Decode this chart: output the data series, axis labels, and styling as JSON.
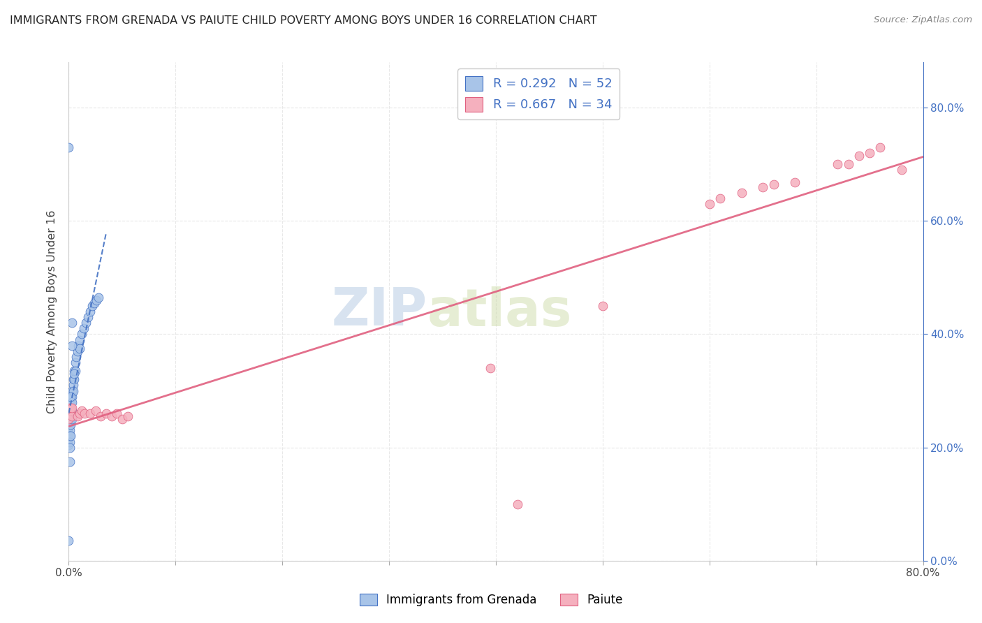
{
  "title": "IMMIGRANTS FROM GRENADA VS PAIUTE CHILD POVERTY AMONG BOYS UNDER 16 CORRELATION CHART",
  "source": "Source: ZipAtlas.com",
  "ylabel": "Child Poverty Among Boys Under 16",
  "legend_bottom": [
    "Immigrants from Grenada",
    "Paiute"
  ],
  "r_grenada": 0.292,
  "n_grenada": 52,
  "r_paiute": 0.667,
  "n_paiute": 34,
  "blue_dot_color": "#a8c4e8",
  "pink_dot_color": "#f5b0be",
  "blue_line_color": "#4472c4",
  "pink_line_color": "#e06080",
  "axis_label_color": "#4472c4",
  "title_color": "#222222",
  "source_color": "#888888",
  "watermark": "ZIPAtlas",
  "watermark_color": "#ccd9ef",
  "background_color": "#ffffff",
  "grid_color": "#e8e8e8",
  "xlim": [
    0.0,
    0.8
  ],
  "ylim": [
    0.0,
    0.88
  ],
  "xticks": [
    0.0,
    0.1,
    0.2,
    0.3,
    0.4,
    0.5,
    0.6,
    0.7,
    0.8
  ],
  "yticks": [
    0.0,
    0.2,
    0.4,
    0.6,
    0.8
  ],
  "grenada_x": [
    0.0,
    0.0,
    0.0,
    0.0,
    0.0,
    0.001,
    0.001,
    0.001,
    0.001,
    0.001,
    0.001,
    0.001,
    0.002,
    0.002,
    0.002,
    0.002,
    0.002,
    0.002,
    0.003,
    0.003,
    0.003,
    0.003,
    0.003,
    0.004,
    0.004,
    0.004,
    0.005,
    0.005,
    0.006,
    0.006,
    0.007,
    0.008,
    0.009,
    0.01,
    0.01,
    0.012,
    0.014,
    0.016,
    0.018,
    0.02,
    0.022,
    0.024,
    0.026,
    0.028,
    0.005,
    0.003,
    0.002,
    0.001,
    0.001,
    0.0,
    0.0,
    0.003
  ],
  "grenada_y": [
    0.245,
    0.235,
    0.225,
    0.215,
    0.205,
    0.26,
    0.25,
    0.24,
    0.23,
    0.22,
    0.21,
    0.2,
    0.28,
    0.27,
    0.26,
    0.25,
    0.24,
    0.22,
    0.3,
    0.29,
    0.28,
    0.265,
    0.25,
    0.32,
    0.31,
    0.3,
    0.335,
    0.32,
    0.35,
    0.335,
    0.36,
    0.37,
    0.38,
    0.39,
    0.375,
    0.4,
    0.41,
    0.42,
    0.43,
    0.44,
    0.45,
    0.455,
    0.46,
    0.465,
    0.33,
    0.42,
    0.29,
    0.26,
    0.175,
    0.73,
    0.035,
    0.38
  ],
  "paiute_x": [
    0.0,
    0.001,
    0.001,
    0.002,
    0.002,
    0.003,
    0.003,
    0.008,
    0.01,
    0.012,
    0.015,
    0.02,
    0.025,
    0.03,
    0.035,
    0.04,
    0.045,
    0.05,
    0.055,
    0.395,
    0.42,
    0.5,
    0.6,
    0.61,
    0.63,
    0.65,
    0.66,
    0.68,
    0.72,
    0.73,
    0.74,
    0.75,
    0.76,
    0.78
  ],
  "paiute_y": [
    0.25,
    0.27,
    0.265,
    0.265,
    0.27,
    0.255,
    0.27,
    0.255,
    0.26,
    0.265,
    0.26,
    0.26,
    0.265,
    0.255,
    0.26,
    0.255,
    0.26,
    0.25,
    0.255,
    0.34,
    0.1,
    0.45,
    0.63,
    0.64,
    0.65,
    0.66,
    0.665,
    0.668,
    0.7,
    0.7,
    0.715,
    0.72,
    0.73,
    0.69
  ]
}
